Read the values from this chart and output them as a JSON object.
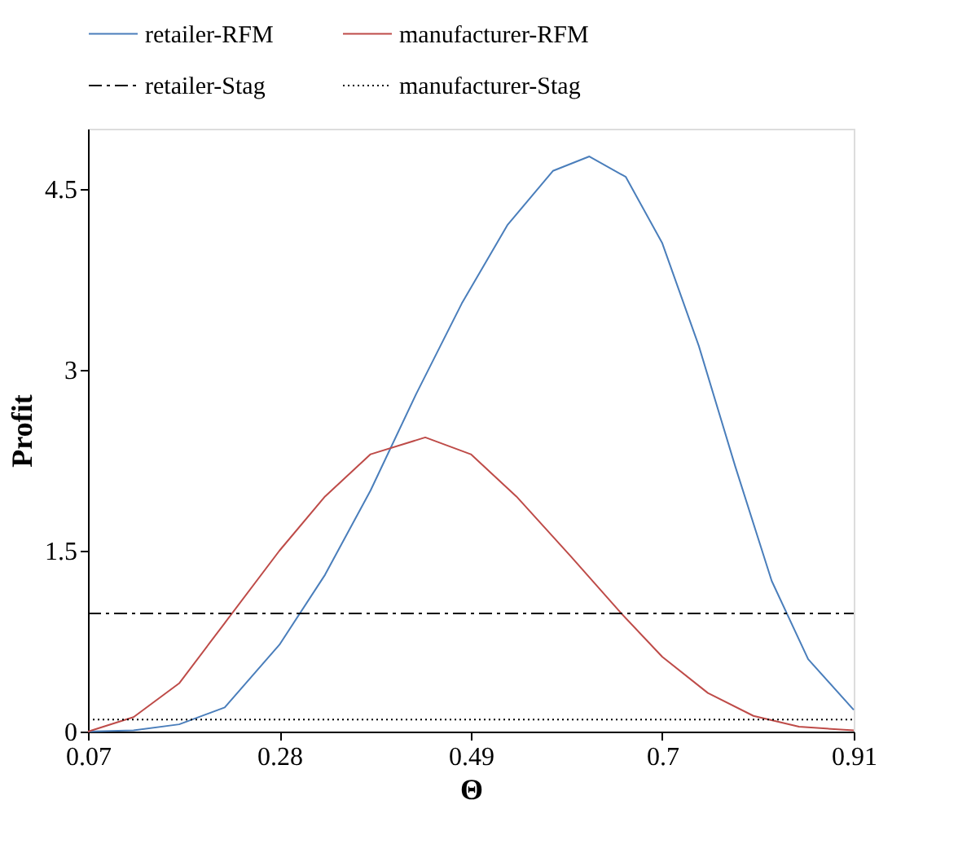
{
  "chart_data": {
    "type": "line",
    "xlabel": "Θ",
    "ylabel": "Profit",
    "xlim": [
      0.07,
      0.91
    ],
    "xticks": [
      0.07,
      0.28,
      0.49,
      0.7,
      0.91
    ],
    "ylim": [
      0,
      5
    ],
    "yticks": [
      0,
      1.5,
      3,
      4.5
    ],
    "grid": false,
    "legend": "top",
    "marker": "none",
    "series": [
      {
        "name": "retailer-RFM",
        "color": "#4a7ebb",
        "line_style": "solid",
        "x": [
          0.07,
          0.12,
          0.17,
          0.22,
          0.28,
          0.33,
          0.38,
          0.43,
          0.48,
          0.53,
          0.58,
          0.62,
          0.66,
          0.7,
          0.74,
          0.78,
          0.82,
          0.86,
          0.91
        ],
        "values": [
          0.0,
          0.01,
          0.06,
          0.2,
          0.72,
          1.3,
          2.0,
          2.8,
          3.55,
          4.2,
          4.65,
          4.77,
          4.6,
          4.05,
          3.2,
          2.2,
          1.25,
          0.6,
          0.18
        ]
      },
      {
        "name": "manufacturer-RFM",
        "color": "#be4b48",
        "line_style": "solid",
        "x": [
          0.07,
          0.12,
          0.17,
          0.22,
          0.28,
          0.33,
          0.38,
          0.44,
          0.49,
          0.54,
          0.6,
          0.655,
          0.7,
          0.75,
          0.8,
          0.85,
          0.91
        ],
        "values": [
          0.0,
          0.12,
          0.4,
          0.9,
          1.5,
          1.95,
          2.3,
          2.44,
          2.3,
          1.95,
          1.45,
          0.98,
          0.62,
          0.32,
          0.13,
          0.04,
          0.01
        ]
      },
      {
        "name": "retailer-Stag",
        "color": "#000000",
        "line_style": "dashdot",
        "x": [
          0.07,
          0.91
        ],
        "values": [
          0.98,
          0.98
        ]
      },
      {
        "name": "manufacturer-Stag",
        "color": "#000000",
        "line_style": "dotted",
        "x": [
          0.07,
          0.91
        ],
        "values": [
          0.1,
          0.1
        ]
      }
    ]
  }
}
